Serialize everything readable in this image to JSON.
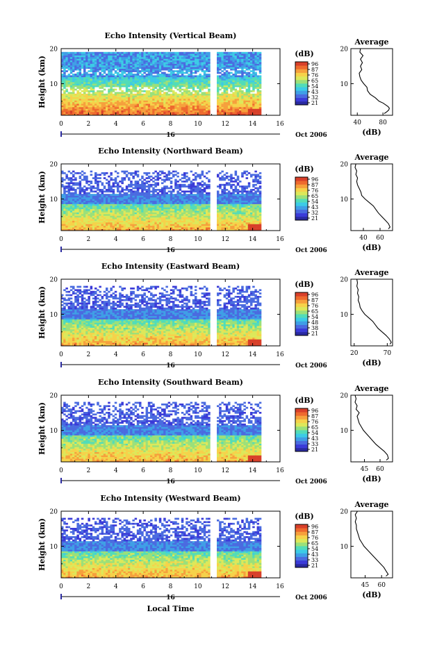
{
  "colors": {
    "scale": [
      "#2a2aa0",
      "#3b3bd8",
      "#4a6be0",
      "#3f9fe6",
      "#3ccbe6",
      "#52dcb8",
      "#9be07a",
      "#dde85a",
      "#f6d24a",
      "#f6a03c",
      "#ee6a2e",
      "#d8402a"
    ],
    "frame": "#000000",
    "gap": "#ffffff"
  },
  "xlabel_bottom": "Local Time",
  "date_label": "16",
  "date_suffix": "Oct 2006",
  "chart_data": [
    {
      "type": "heatmap",
      "title": "Echo Intensity (Vertical Beam)",
      "ylabel": "Height (km)",
      "ylim": [
        1,
        20
      ],
      "xlim": [
        0,
        16
      ],
      "x_ticks": [
        "0",
        "2",
        "4",
        "6",
        "8",
        "10",
        "12",
        "14",
        "16"
      ],
      "y_ticks": [
        "10",
        "20"
      ],
      "colorbar_label": "(dB)",
      "colorbar_ticks": [
        "96",
        "87",
        "76",
        "65",
        "54",
        "43",
        "32",
        "21"
      ],
      "data_gap_hours": [
        11,
        11.3
      ],
      "data_end_hour": 14.6,
      "profile": {
        "title": "Average",
        "xlabel": "(dB)",
        "x_ticks": [
          "40",
          "80"
        ],
        "xlim": [
          30,
          95
        ],
        "y_ticks": [
          "10",
          "20"
        ],
        "heights": [
          1.5,
          2,
          2.5,
          3,
          3.5,
          4,
          4.5,
          5,
          6,
          7,
          8,
          9,
          10,
          11,
          12,
          13,
          14,
          15,
          16,
          17,
          18,
          19,
          20
        ],
        "values": [
          82,
          86,
          89,
          90,
          88,
          84,
          80,
          74,
          68,
          60,
          56,
          55,
          50,
          46,
          44,
          43,
          47,
          45,
          48,
          45,
          49,
          44,
          45
        ]
      }
    },
    {
      "type": "heatmap",
      "title": "Echo Intensity (Northward Beam)",
      "ylabel": "Height (km)",
      "ylim": [
        1,
        20
      ],
      "xlim": [
        0,
        16
      ],
      "x_ticks": [
        "0",
        "2",
        "4",
        "6",
        "8",
        "10",
        "12",
        "14",
        "16"
      ],
      "y_ticks": [
        "10",
        "20"
      ],
      "colorbar_label": "(dB)",
      "colorbar_ticks": [
        "96",
        "87",
        "76",
        "65",
        "54",
        "43",
        "32",
        "21"
      ],
      "data_gap_hours": [
        11,
        11.3
      ],
      "data_end_hour": 14.6,
      "profile": {
        "title": "Average",
        "xlabel": "(dB)",
        "x_ticks": [
          "40",
          "60"
        ],
        "xlim": [
          25,
          75
        ],
        "y_ticks": [
          "10",
          "20"
        ],
        "heights": [
          1.5,
          2,
          3,
          4,
          5,
          6,
          7,
          8,
          9,
          10,
          11,
          12,
          13,
          14,
          15,
          16,
          17,
          18,
          19,
          20
        ],
        "values": [
          70,
          72,
          70,
          66,
          62,
          58,
          55,
          52,
          47,
          42,
          38,
          37,
          35,
          33,
          32,
          33,
          31,
          32,
          30,
          31
        ]
      }
    },
    {
      "type": "heatmap",
      "title": "Echo Intensity (Eastward Beam)",
      "ylabel": "Height (km)",
      "ylim": [
        1,
        20
      ],
      "xlim": [
        0,
        16
      ],
      "x_ticks": [
        "0",
        "2",
        "4",
        "6",
        "8",
        "10",
        "12",
        "14",
        "16"
      ],
      "y_ticks": [
        "10",
        "20"
      ],
      "colorbar_label": "(dB)",
      "colorbar_ticks": [
        "96",
        "87",
        "76",
        "65",
        "54",
        "48",
        "38",
        "21"
      ],
      "data_gap_hours": [
        11,
        11.3
      ],
      "data_end_hour": 14.6,
      "profile": {
        "title": "Average",
        "xlabel": "(dB)",
        "x_ticks": [
          "20",
          "70"
        ],
        "xlim": [
          15,
          78
        ],
        "y_ticks": [
          "10",
          "20"
        ],
        "heights": [
          1.5,
          2,
          3,
          4,
          5,
          6,
          7,
          8,
          9,
          10,
          11,
          12,
          13,
          14,
          15,
          16,
          17,
          18,
          19,
          20
        ],
        "values": [
          74,
          76,
          73,
          68,
          62,
          56,
          52,
          48,
          42,
          36,
          32,
          29,
          28,
          26,
          27,
          25,
          26,
          24,
          25,
          24
        ]
      }
    },
    {
      "type": "heatmap",
      "title": "Echo Intensity (Southward Beam)",
      "ylabel": "Height (km)",
      "ylim": [
        1,
        20
      ],
      "xlim": [
        0,
        16
      ],
      "x_ticks": [
        "0",
        "2",
        "4",
        "6",
        "8",
        "10",
        "12",
        "14",
        "16"
      ],
      "y_ticks": [
        "10",
        "20"
      ],
      "colorbar_label": "(dB)",
      "colorbar_ticks": [
        "96",
        "87",
        "76",
        "65",
        "54",
        "43",
        "33",
        "21"
      ],
      "data_gap_hours": [
        11,
        11.3
      ],
      "data_end_hour": 14.6,
      "profile": {
        "title": "Average",
        "xlabel": "(dB)",
        "x_ticks": [
          "45",
          "60"
        ],
        "xlim": [
          32,
          72
        ],
        "y_ticks": [
          "10",
          "20"
        ],
        "heights": [
          1.5,
          2,
          3,
          4,
          5,
          6,
          7,
          8,
          9,
          10,
          11,
          12,
          13,
          14,
          15,
          16,
          17,
          18,
          19,
          20
        ],
        "values": [
          66,
          68,
          67,
          64,
          60,
          56,
          53,
          50,
          47,
          44,
          42,
          40,
          39,
          38,
          40,
          37,
          38,
          36,
          37,
          36
        ]
      }
    },
    {
      "type": "heatmap",
      "title": "Echo Intensity (Westward Beam)",
      "ylabel": "Height (km)",
      "ylim": [
        1,
        20
      ],
      "xlim": [
        0,
        16
      ],
      "x_ticks": [
        "0",
        "2",
        "4",
        "6",
        "8",
        "10",
        "12",
        "14",
        "16"
      ],
      "y_ticks": [
        "10",
        "20"
      ],
      "colorbar_label": "(dB)",
      "colorbar_ticks": [
        "96",
        "87",
        "76",
        "65",
        "54",
        "43",
        "33",
        "21"
      ],
      "data_gap_hours": [
        11,
        11.3
      ],
      "data_end_hour": 14.6,
      "profile": {
        "title": "Average",
        "xlabel": "(dB)",
        "x_ticks": [
          "45",
          "60"
        ],
        "xlim": [
          32,
          70
        ],
        "y_ticks": [
          "10",
          "20"
        ],
        "heights": [
          1.5,
          2,
          3,
          4,
          5,
          6,
          7,
          8,
          9,
          10,
          11,
          12,
          13,
          14,
          15,
          16,
          17,
          18,
          19,
          20
        ],
        "values": [
          64,
          66,
          64,
          62,
          59,
          56,
          53,
          50,
          47,
          44,
          42,
          40,
          39,
          38,
          37,
          37,
          36,
          37,
          36,
          38
        ]
      }
    }
  ]
}
